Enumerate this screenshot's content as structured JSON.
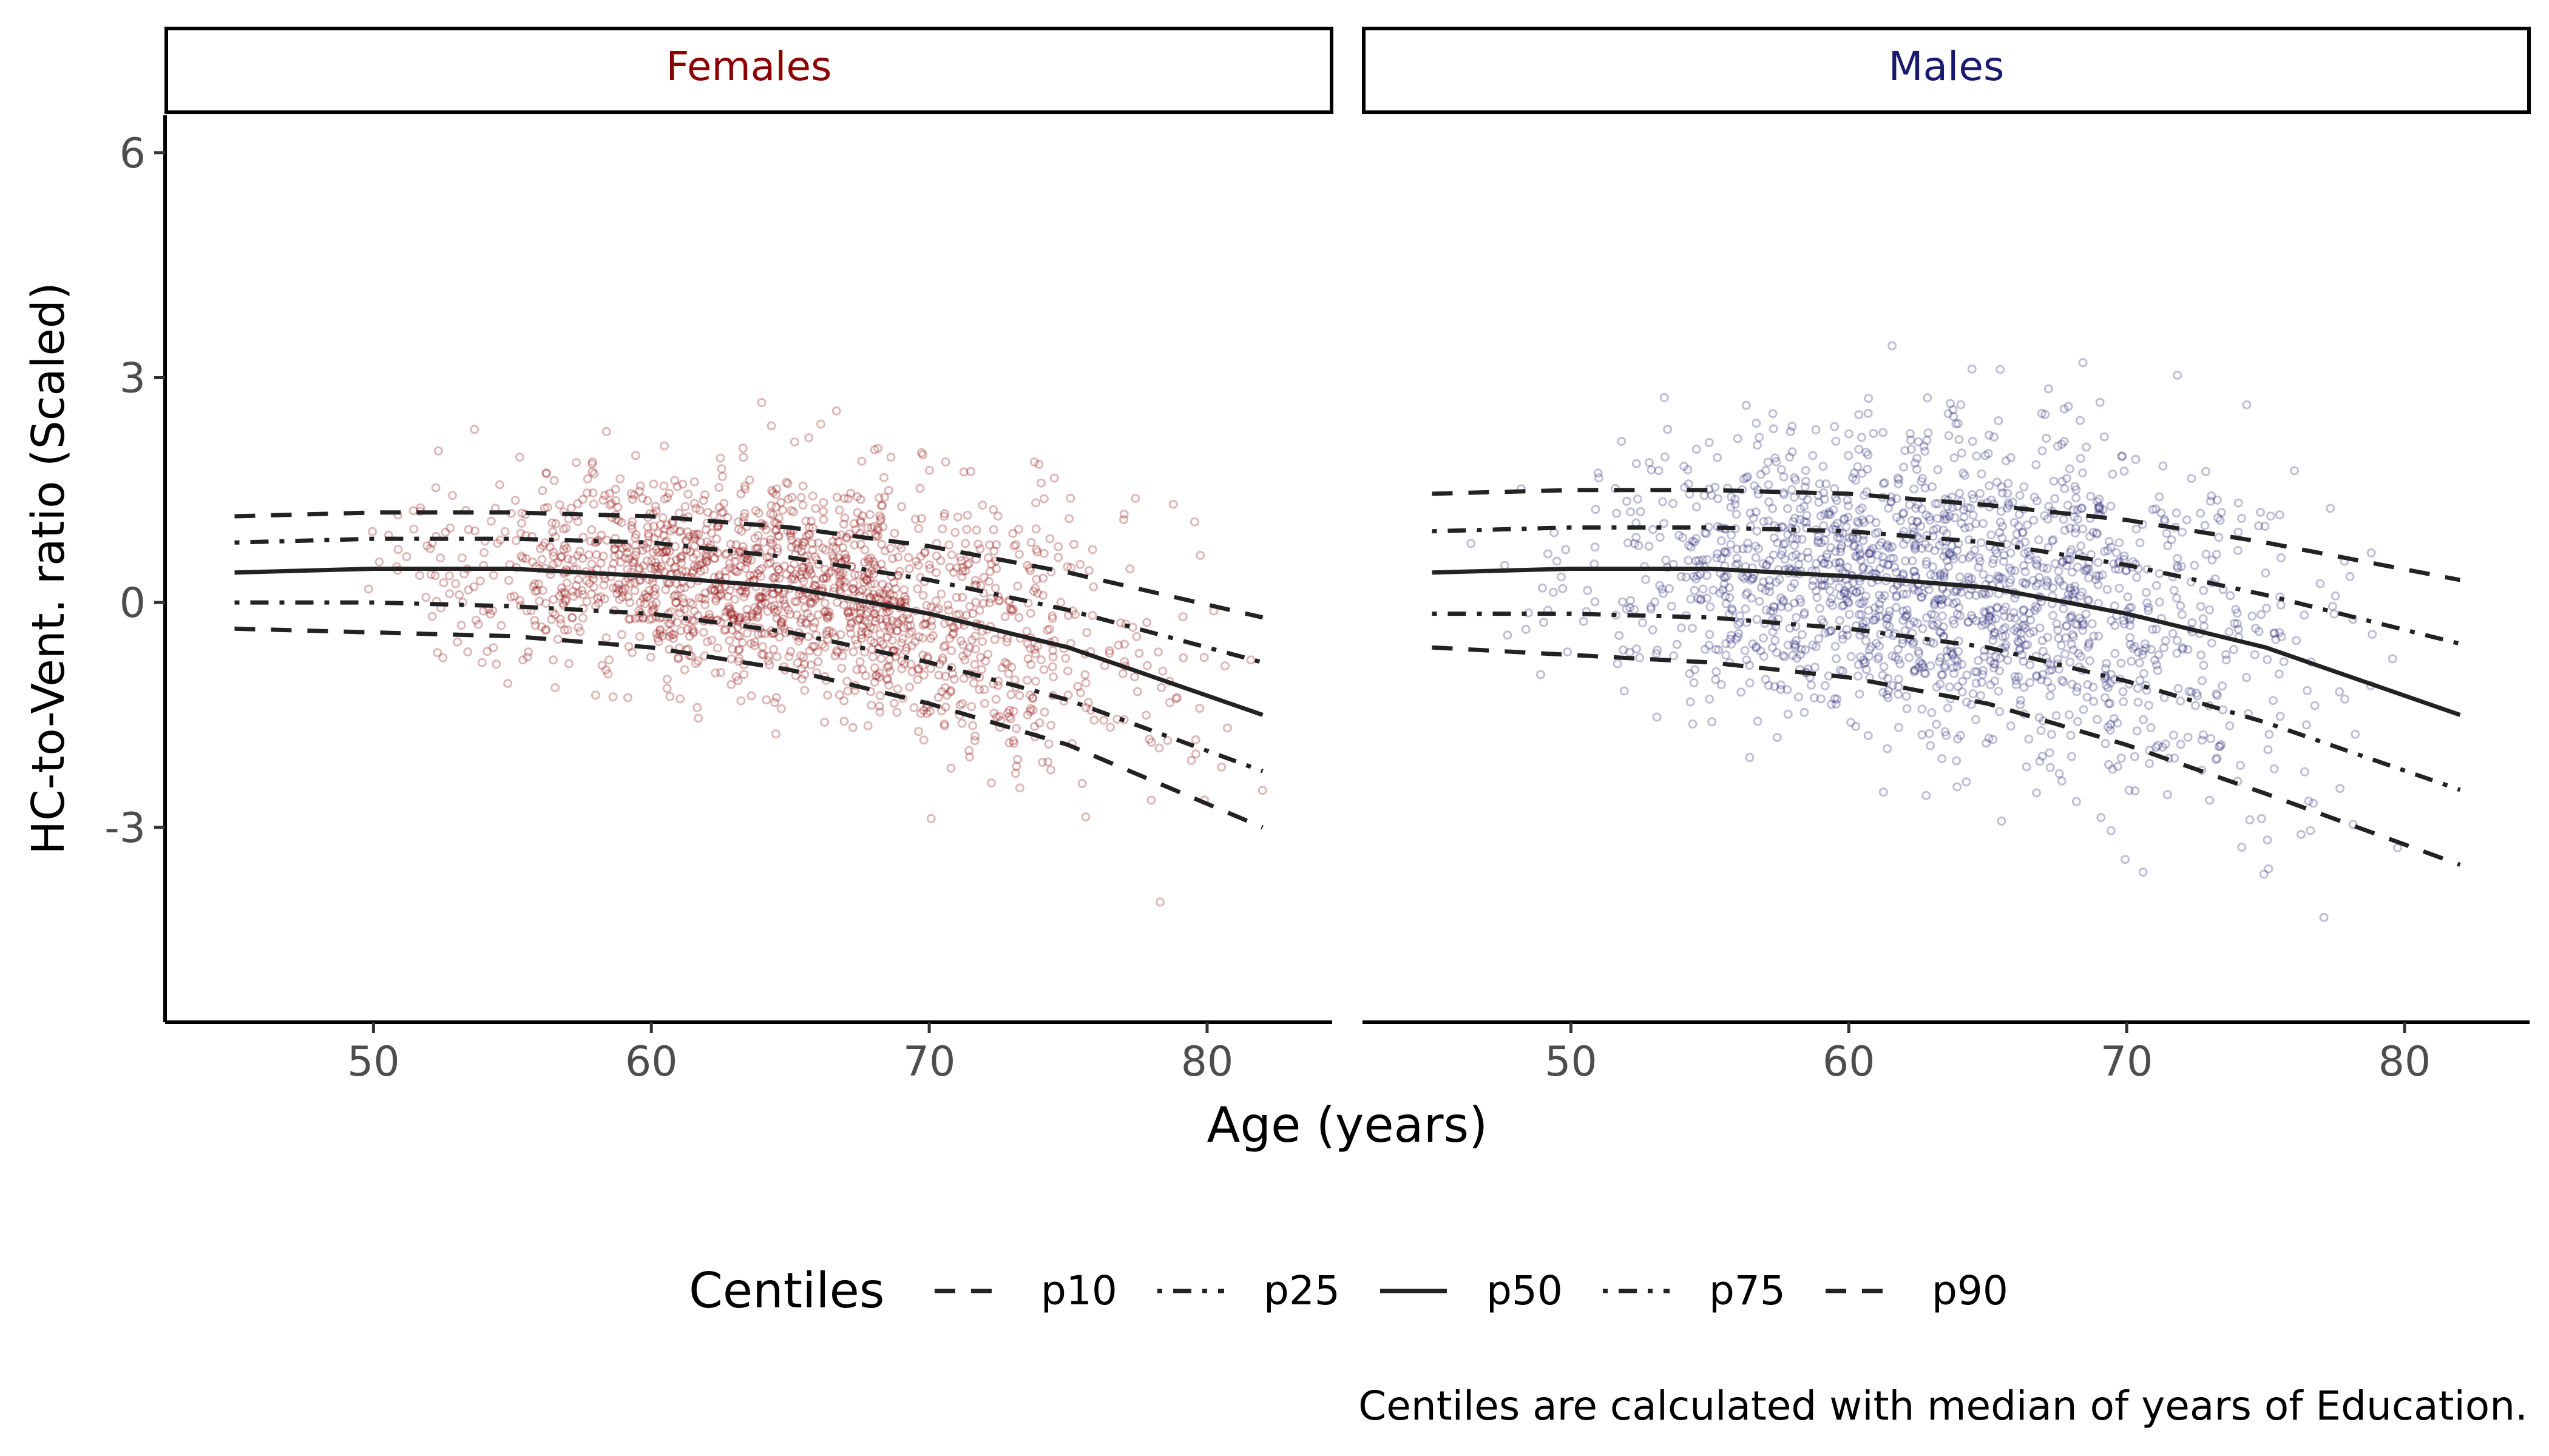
{
  "chart_data": {
    "type": "scatter",
    "xlabel": "Age (years)",
    "ylabel": "HC-to-Vent. ratio (Scaled)",
    "xlim": [
      42.5,
      84.5
    ],
    "ylim": [
      -5.6,
      6.5
    ],
    "xticks": [
      "50",
      "60",
      "70",
      "80"
    ],
    "yticks": [
      "-3",
      "0",
      "3",
      "6"
    ],
    "grid": false,
    "legend_position": "bottom",
    "legend_title": "Centiles",
    "caption": "Centiles are calculated with median of years of Education.",
    "centile_labels": [
      "p10",
      "p25",
      "p50",
      "p75",
      "p90"
    ],
    "centile_x": [
      45,
      50,
      55,
      60,
      65,
      70,
      75,
      82
    ],
    "panels": [
      {
        "name": "Females",
        "color": "#8b0000",
        "scatter_summary": {
          "x_range": [
            47,
            83
          ],
          "y_range": [
            -4.7,
            2.7
          ]
        },
        "centiles": {
          "p90": [
            1.15,
            1.2,
            1.2,
            1.15,
            1.0,
            0.75,
            0.4,
            -0.2
          ],
          "p75": [
            0.8,
            0.85,
            0.85,
            0.8,
            0.6,
            0.3,
            -0.1,
            -0.8
          ],
          "p50": [
            0.4,
            0.45,
            0.45,
            0.35,
            0.2,
            -0.15,
            -0.6,
            -1.5
          ],
          "p25": [
            0.0,
            0.0,
            -0.05,
            -0.15,
            -0.4,
            -0.8,
            -1.3,
            -2.25
          ],
          "p10": [
            -0.35,
            -0.4,
            -0.45,
            -0.6,
            -0.9,
            -1.35,
            -1.9,
            -3.0
          ]
        }
      },
      {
        "name": "Males",
        "color": "#191970",
        "scatter_summary": {
          "x_range": [
            45,
            82
          ],
          "y_range": [
            -4.9,
            4.7
          ]
        },
        "centiles": {
          "p90": [
            1.45,
            1.5,
            1.5,
            1.45,
            1.3,
            1.1,
            0.8,
            0.3
          ],
          "p75": [
            0.95,
            1.0,
            1.0,
            0.95,
            0.8,
            0.5,
            0.1,
            -0.55
          ],
          "p50": [
            0.4,
            0.45,
            0.45,
            0.35,
            0.2,
            -0.15,
            -0.6,
            -1.5
          ],
          "p25": [
            -0.15,
            -0.15,
            -0.2,
            -0.35,
            -0.6,
            -1.05,
            -1.6,
            -2.5
          ],
          "p10": [
            -0.6,
            -0.7,
            -0.8,
            -1.0,
            -1.35,
            -1.9,
            -2.55,
            -3.5
          ]
        }
      }
    ]
  }
}
